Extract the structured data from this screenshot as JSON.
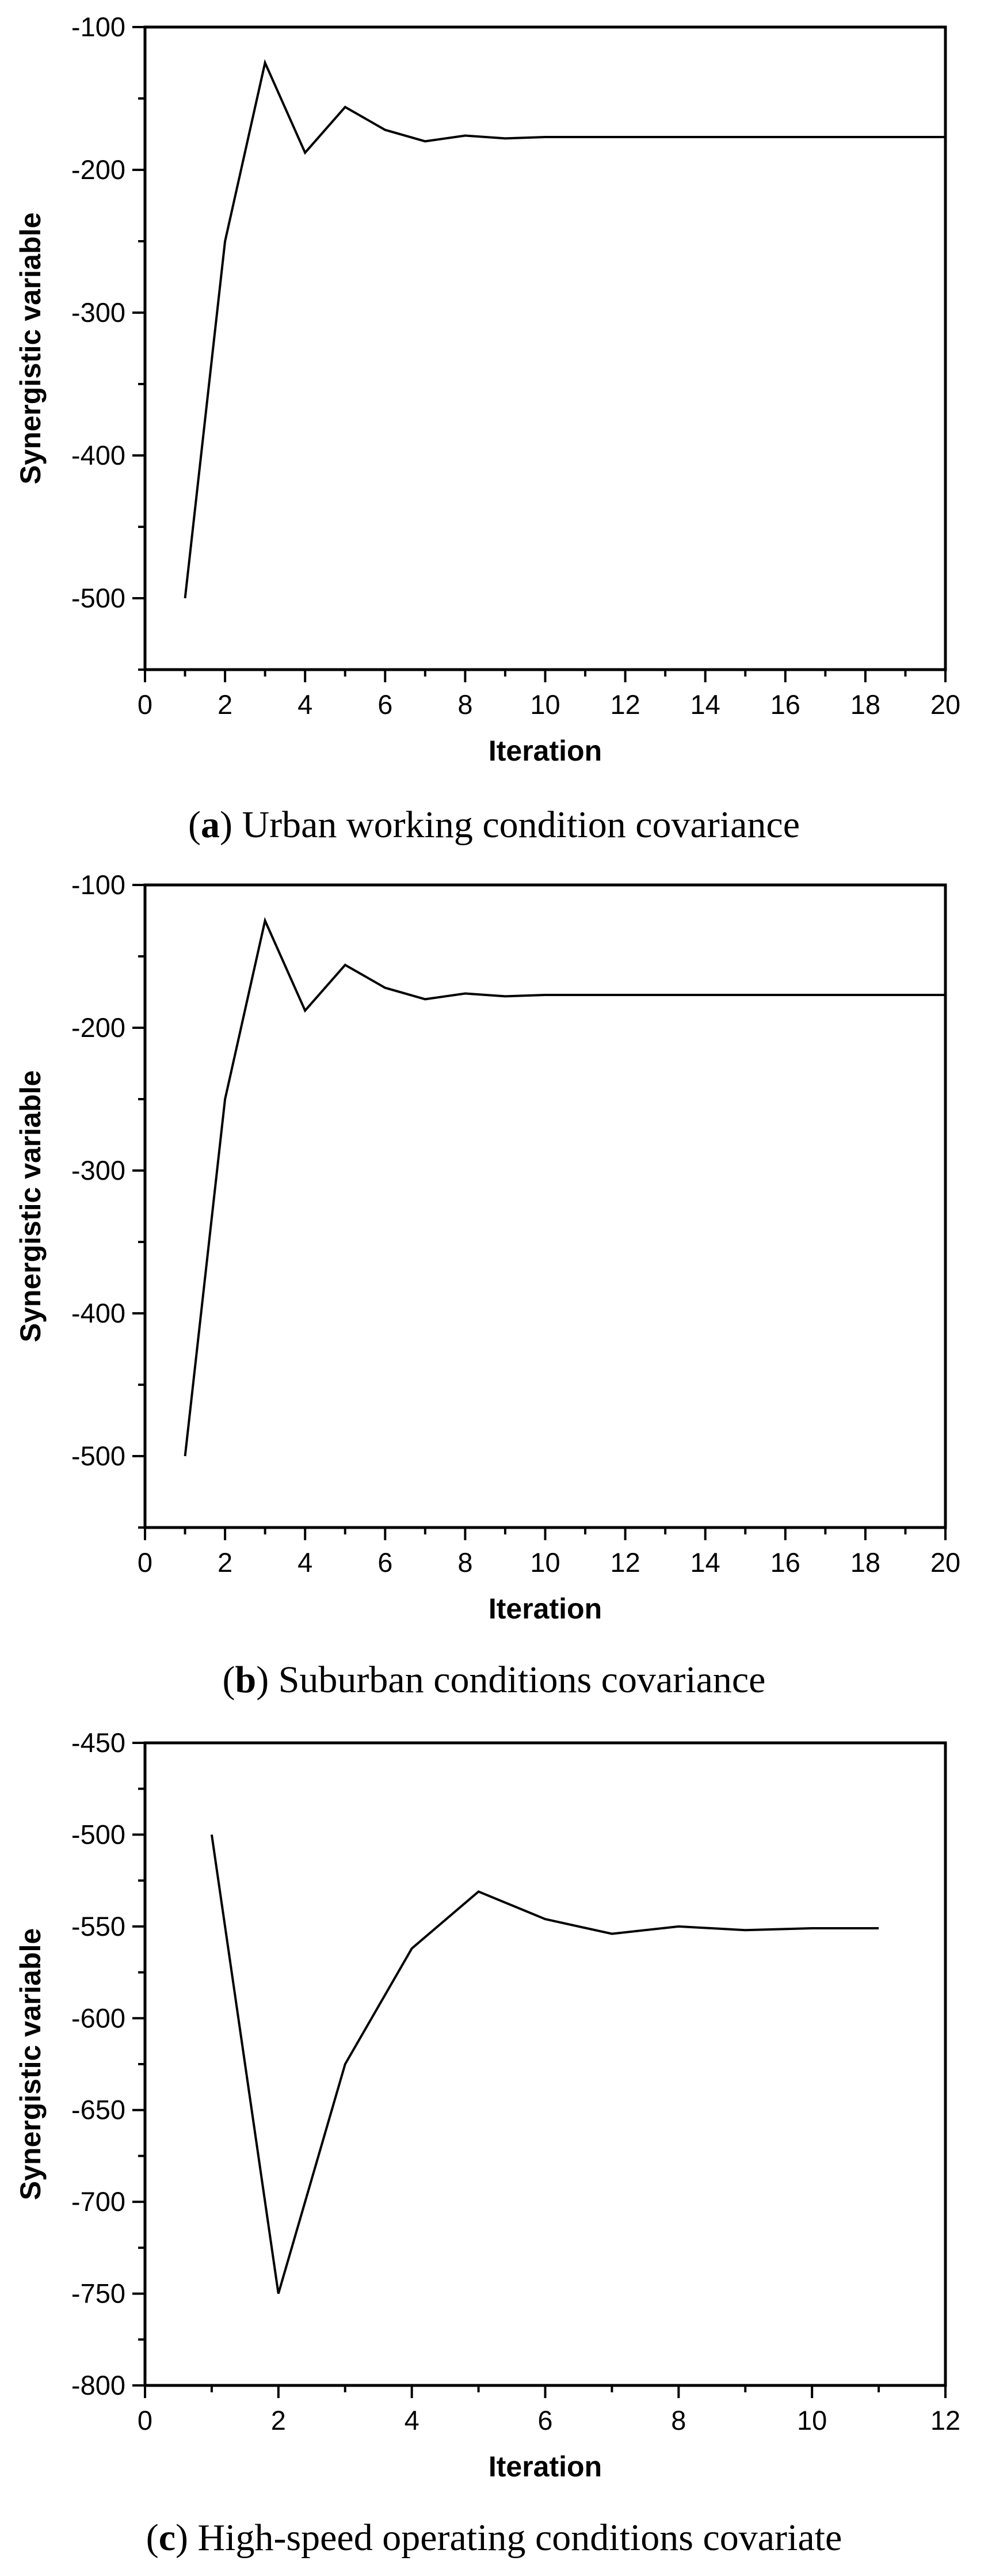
{
  "chart_data": [
    {
      "type": "line",
      "caption_letter": "a",
      "caption_text": ") Urban working condition covariance",
      "xlabel": "Iteration",
      "ylabel": "Synergistic variable",
      "xlim": [
        0,
        20
      ],
      "ylim": [
        -550,
        -100
      ],
      "xticks": [
        0,
        2,
        4,
        6,
        8,
        10,
        12,
        14,
        16,
        18,
        20
      ],
      "yticks": [
        -500,
        -400,
        -300,
        -200,
        -100
      ],
      "grid": false,
      "series": [
        {
          "x": [
            1,
            2,
            3,
            4,
            5,
            6,
            7,
            8,
            9,
            10,
            11,
            12,
            13,
            14,
            15,
            16,
            17,
            18,
            19,
            20
          ],
          "y": [
            -500,
            -250,
            -125,
            -188,
            -156,
            -172,
            -180,
            -176,
            -178,
            -177,
            -177,
            -177,
            -177,
            -177,
            -177,
            -177,
            -177,
            -177,
            -177,
            -177
          ]
        }
      ]
    },
    {
      "type": "line",
      "caption_letter": "b",
      "caption_text": ") Suburban conditions covariance",
      "xlabel": "Iteration",
      "ylabel": "Synergistic variable",
      "xlim": [
        0,
        20
      ],
      "ylim": [
        -550,
        -100
      ],
      "xticks": [
        0,
        2,
        4,
        6,
        8,
        10,
        12,
        14,
        16,
        18,
        20
      ],
      "yticks": [
        -500,
        -400,
        -300,
        -200,
        -100
      ],
      "grid": false,
      "series": [
        {
          "x": [
            1,
            2,
            3,
            4,
            5,
            6,
            7,
            8,
            9,
            10,
            11,
            12,
            13,
            14,
            15,
            16,
            17,
            18,
            19,
            20
          ],
          "y": [
            -500,
            -250,
            -125,
            -188,
            -156,
            -172,
            -180,
            -176,
            -178,
            -177,
            -177,
            -177,
            -177,
            -177,
            -177,
            -177,
            -177,
            -177,
            -177,
            -177
          ]
        }
      ]
    },
    {
      "type": "line",
      "caption_letter": "c",
      "caption_text": ") High-speed operating conditions covariate",
      "xlabel": "Iteration",
      "ylabel": "Synergistic variable",
      "xlim": [
        0,
        12
      ],
      "ylim": [
        -800,
        -450
      ],
      "xticks": [
        0,
        2,
        4,
        6,
        8,
        10,
        12
      ],
      "yticks": [
        -800,
        -750,
        -700,
        -650,
        -600,
        -550,
        -500,
        -450
      ],
      "grid": false,
      "series": [
        {
          "x": [
            1,
            2,
            3,
            4,
            5,
            6,
            7,
            8,
            9,
            10,
            11
          ],
          "y": [
            -500,
            -750,
            -625,
            -562,
            -531,
            -546,
            -554,
            -550,
            -552,
            -551,
            -551
          ]
        }
      ]
    }
  ]
}
